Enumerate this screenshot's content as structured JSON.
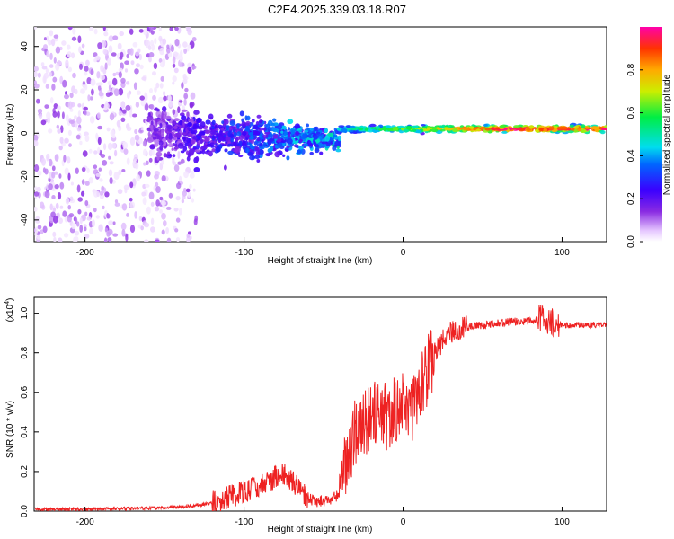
{
  "title": "C2E4.2025.339.03.18.R07",
  "chart_data": [
    {
      "type": "heatmap",
      "name": "spectrogram",
      "xlabel": "Height of straight line (km)",
      "ylabel": "Frequency (Hz)",
      "xlim": [
        -232,
        128
      ],
      "ylim": [
        -50,
        49
      ],
      "xticks": [
        -200,
        -100,
        0,
        100
      ],
      "yticks": [
        -40,
        -20,
        0,
        20,
        40
      ],
      "colorbar": {
        "label": "Normalized spectral amplitude",
        "range": [
          0,
          1
        ],
        "ticks": [
          0.0,
          0.2,
          0.4,
          0.6,
          0.8
        ],
        "tick_labels": [
          "0.0",
          "0.2",
          "0.4",
          "0.6",
          "0.8"
        ]
      },
      "features": [
        {
          "desc": "scattered weak noise",
          "x_range": [
            -232,
            -130
          ],
          "freq_range": [
            -50,
            49
          ],
          "amplitude": [
            0.02,
            0.15
          ]
        },
        {
          "desc": "broad band",
          "x_range": [
            -160,
            -40
          ],
          "freq_center": 0,
          "freq_halfwidth": [
            15,
            6
          ],
          "amplitude": [
            0.15,
            0.45
          ]
        },
        {
          "desc": "narrow tone",
          "x_range": [
            -40,
            128
          ],
          "freq_center": 2,
          "freq_halfwidth": 2,
          "amplitude": [
            0.5,
            1.0
          ]
        }
      ]
    },
    {
      "type": "line",
      "name": "snr",
      "xlabel": "Height of straight line (km)",
      "ylabel": "SNR (10 * v/v)",
      "scale_label": "(x10",
      "scale_exponent": "4",
      "scale_suffix": ")",
      "xlim": [
        -232,
        128
      ],
      "ylim": [
        0,
        1.08
      ],
      "xticks": [
        -200,
        -100,
        0,
        100
      ],
      "yticks": [
        0.0,
        0.2,
        0.4,
        0.6,
        0.8,
        1.0
      ],
      "ytick_labels": [
        "0.0",
        "0.2",
        "0.4",
        "0.6",
        "0.8",
        "1.0"
      ],
      "color": "#ee2222",
      "x": [
        -232,
        -200,
        -160,
        -140,
        -120,
        -110,
        -100,
        -90,
        -85,
        -80,
        -75,
        -70,
        -65,
        -60,
        -55,
        -50,
        -45,
        -40,
        -35,
        -30,
        -25,
        -20,
        -15,
        -10,
        -5,
        0,
        5,
        10,
        15,
        20,
        25,
        30,
        40,
        50,
        60,
        70,
        80,
        85,
        88,
        90,
        92,
        95,
        100,
        110,
        120,
        128
      ],
      "y": [
        0.01,
        0.01,
        0.015,
        0.02,
        0.04,
        0.07,
        0.1,
        0.13,
        0.15,
        0.17,
        0.19,
        0.16,
        0.1,
        0.07,
        0.05,
        0.05,
        0.06,
        0.09,
        0.25,
        0.4,
        0.45,
        0.48,
        0.5,
        0.48,
        0.52,
        0.55,
        0.5,
        0.6,
        0.7,
        0.8,
        0.86,
        0.9,
        0.93,
        0.94,
        0.95,
        0.96,
        0.96,
        0.97,
        0.99,
        0.95,
        0.98,
        0.94,
        0.94,
        0.94,
        0.94,
        0.94
      ]
    }
  ]
}
